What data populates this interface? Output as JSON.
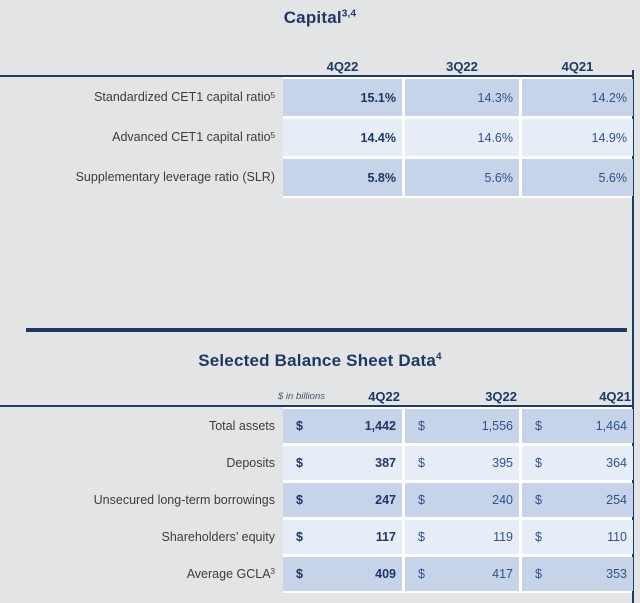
{
  "page": {
    "background": "#e3e4e6",
    "accent_navy": "#1f3864",
    "cell_blue_dark": "#c6d3e8",
    "cell_blue_light": "#e7edf6",
    "value_text_blue": "#30508f",
    "label_text_color": "#3c3c3e"
  },
  "capital_table": {
    "title": "Capital",
    "title_sup": "3,4",
    "columns": [
      "4Q22",
      "3Q22",
      "4Q21"
    ],
    "rows": [
      {
        "label": "Standardized CET1 capital ratio",
        "label_sup": "5",
        "values": [
          "15.1%",
          "14.3%",
          "14.2%"
        ]
      },
      {
        "label": "Advanced CET1 capital ratio",
        "label_sup": "5",
        "values": [
          "14.4%",
          "14.6%",
          "14.9%"
        ]
      },
      {
        "label": "Supplementary leverage ratio (SLR)",
        "label_sup": "",
        "values": [
          "5.8%",
          "5.6%",
          "5.6%"
        ]
      }
    ]
  },
  "balance_table": {
    "title": "Selected Balance Sheet Data",
    "title_sup": "4",
    "units_note": "$ in billions",
    "currency_symbol": "$",
    "columns": [
      "4Q22",
      "3Q22",
      "4Q21"
    ],
    "rows": [
      {
        "label": "Total assets",
        "label_sup": "",
        "values": [
          "1,442",
          "1,556",
          "1,464"
        ]
      },
      {
        "label": "Deposits",
        "label_sup": "",
        "values": [
          "387",
          "395",
          "364"
        ]
      },
      {
        "label": "Unsecured long-term borrowings",
        "label_sup": "",
        "values": [
          "247",
          "240",
          "254"
        ]
      },
      {
        "label": "Shareholders’ equity",
        "label_sup": "",
        "values": [
          "117",
          "119",
          "110"
        ]
      },
      {
        "label": "Average GCLA",
        "label_sup": "3",
        "values": [
          "409",
          "417",
          "353"
        ]
      }
    ]
  }
}
